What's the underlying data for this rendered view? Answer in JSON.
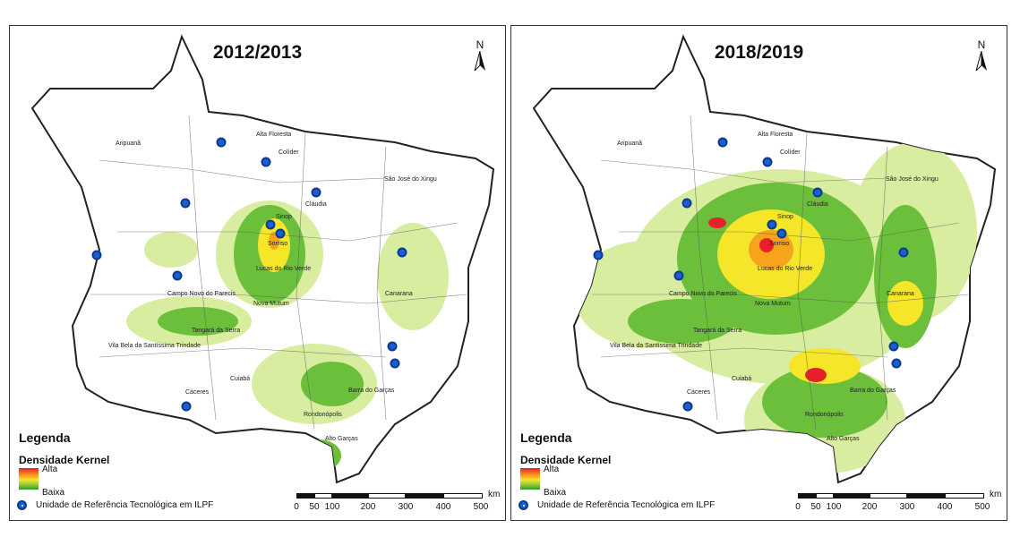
{
  "panels": [
    {
      "title": "2012/2013",
      "north": "N",
      "legend_title": "Legenda",
      "legend_subtitle": "Densidade Kernel",
      "ramp_high": "Alta",
      "ramp_low": "Baixa",
      "ilpf_label": "Unidade de Referência Tecnológica em ILPF",
      "scale_unit": "km",
      "scale_ticks": [
        "0",
        "50",
        "100",
        "200",
        "300",
        "400",
        "500"
      ]
    },
    {
      "title": "2018/2019",
      "north": "N",
      "legend_title": "Legenda",
      "legend_subtitle": "Densidade Kernel",
      "ramp_high": "Alta",
      "ramp_low": "Baixa",
      "ilpf_label": "Unidade de Referência Tecnológica em ILPF",
      "scale_unit": "km",
      "scale_ticks": [
        "0",
        "50",
        "100",
        "200",
        "300",
        "400",
        "500"
      ]
    }
  ],
  "cities": [
    "Aripuanã",
    "Alta Floresta",
    "Colíder",
    "São José do Xingu",
    "Cláudia",
    "Sinop",
    "Sorriso",
    "Lucas do Rio Verde",
    "Campo Novo do Parecis",
    "Nova Mutum",
    "Canarana",
    "Tangará da Serra",
    "Vila Bela da Santíssima Trindade",
    "Cuiabá",
    "Barra do Garças",
    "Cáceres",
    "Rondonópolis",
    "Alto Garças"
  ],
  "colors": {
    "high": "#e8202a",
    "mid": "#f5e62a",
    "low": "#2e9a2e",
    "light": "#d9eda0",
    "ilpf": "#1a5fd0"
  }
}
